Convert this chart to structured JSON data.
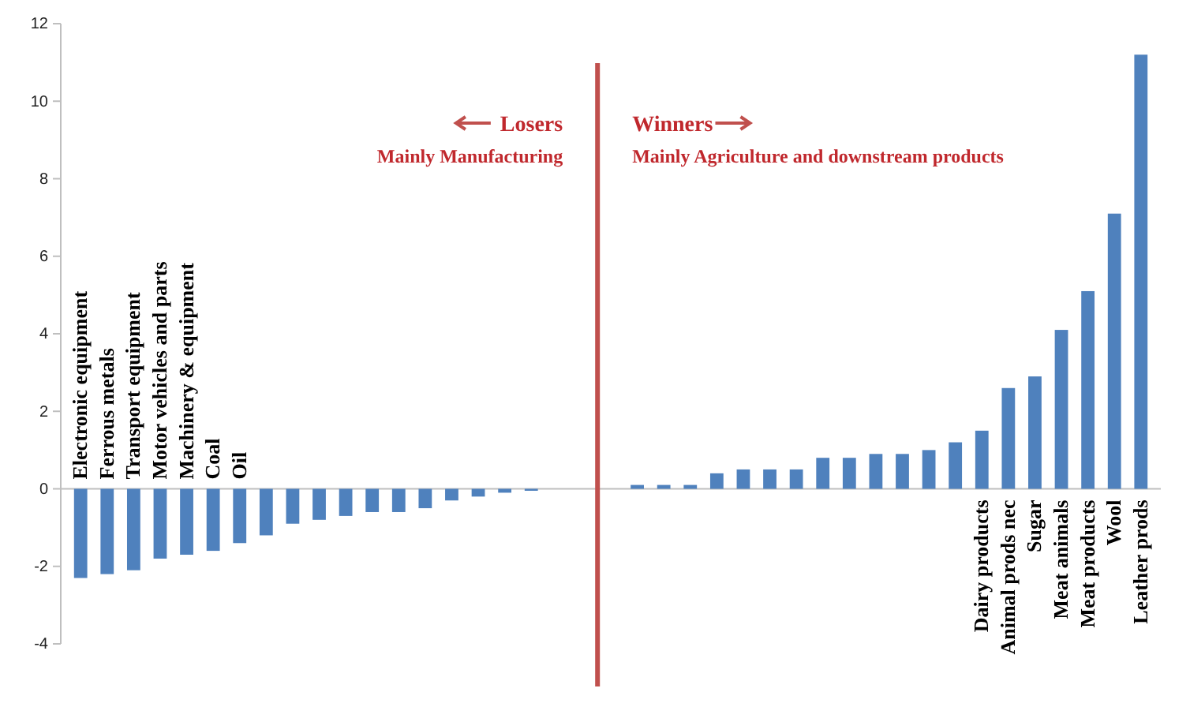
{
  "chart_data": {
    "type": "bar",
    "categories": [
      "Electronic equipment",
      "Ferrous metals",
      "Transport equipment",
      "Motor vehicles and parts",
      "Machinery & equipment",
      "Coal",
      "Oil",
      null,
      null,
      null,
      null,
      null,
      null,
      null,
      null,
      null,
      null,
      null,
      null,
      null,
      null,
      null,
      null,
      null,
      null,
      null,
      null,
      null,
      null,
      null,
      null,
      null,
      null,
      null,
      "Dairy products",
      "Animal prods nec",
      "Sugar",
      "Meat animals",
      "Meat products",
      "Wool",
      "Leather prods"
    ],
    "values": [
      -2.3,
      -2.2,
      -2.1,
      -1.8,
      -1.7,
      -1.6,
      -1.4,
      -1.2,
      -0.9,
      -0.8,
      -0.7,
      -0.6,
      -0.6,
      -0.5,
      -0.3,
      -0.2,
      -0.1,
      -0.05,
      null,
      null,
      null,
      0.1,
      0.1,
      0.1,
      0.4,
      0.5,
      0.5,
      0.5,
      0.8,
      0.8,
      0.9,
      0.9,
      1.0,
      1.2,
      1.5,
      2.6,
      2.9,
      4.1,
      5.1,
      7.1,
      11.2
    ],
    "color": "#4f81bd",
    "ylim": [
      -4,
      12
    ],
    "yticks": [
      -4,
      -2,
      0,
      2,
      4,
      6,
      8,
      10,
      12
    ],
    "grid": false,
    "annotations": [
      "Losers",
      "Mainly Manufacturing",
      "Winners",
      "Mainly Agriculture and downstream products"
    ]
  }
}
